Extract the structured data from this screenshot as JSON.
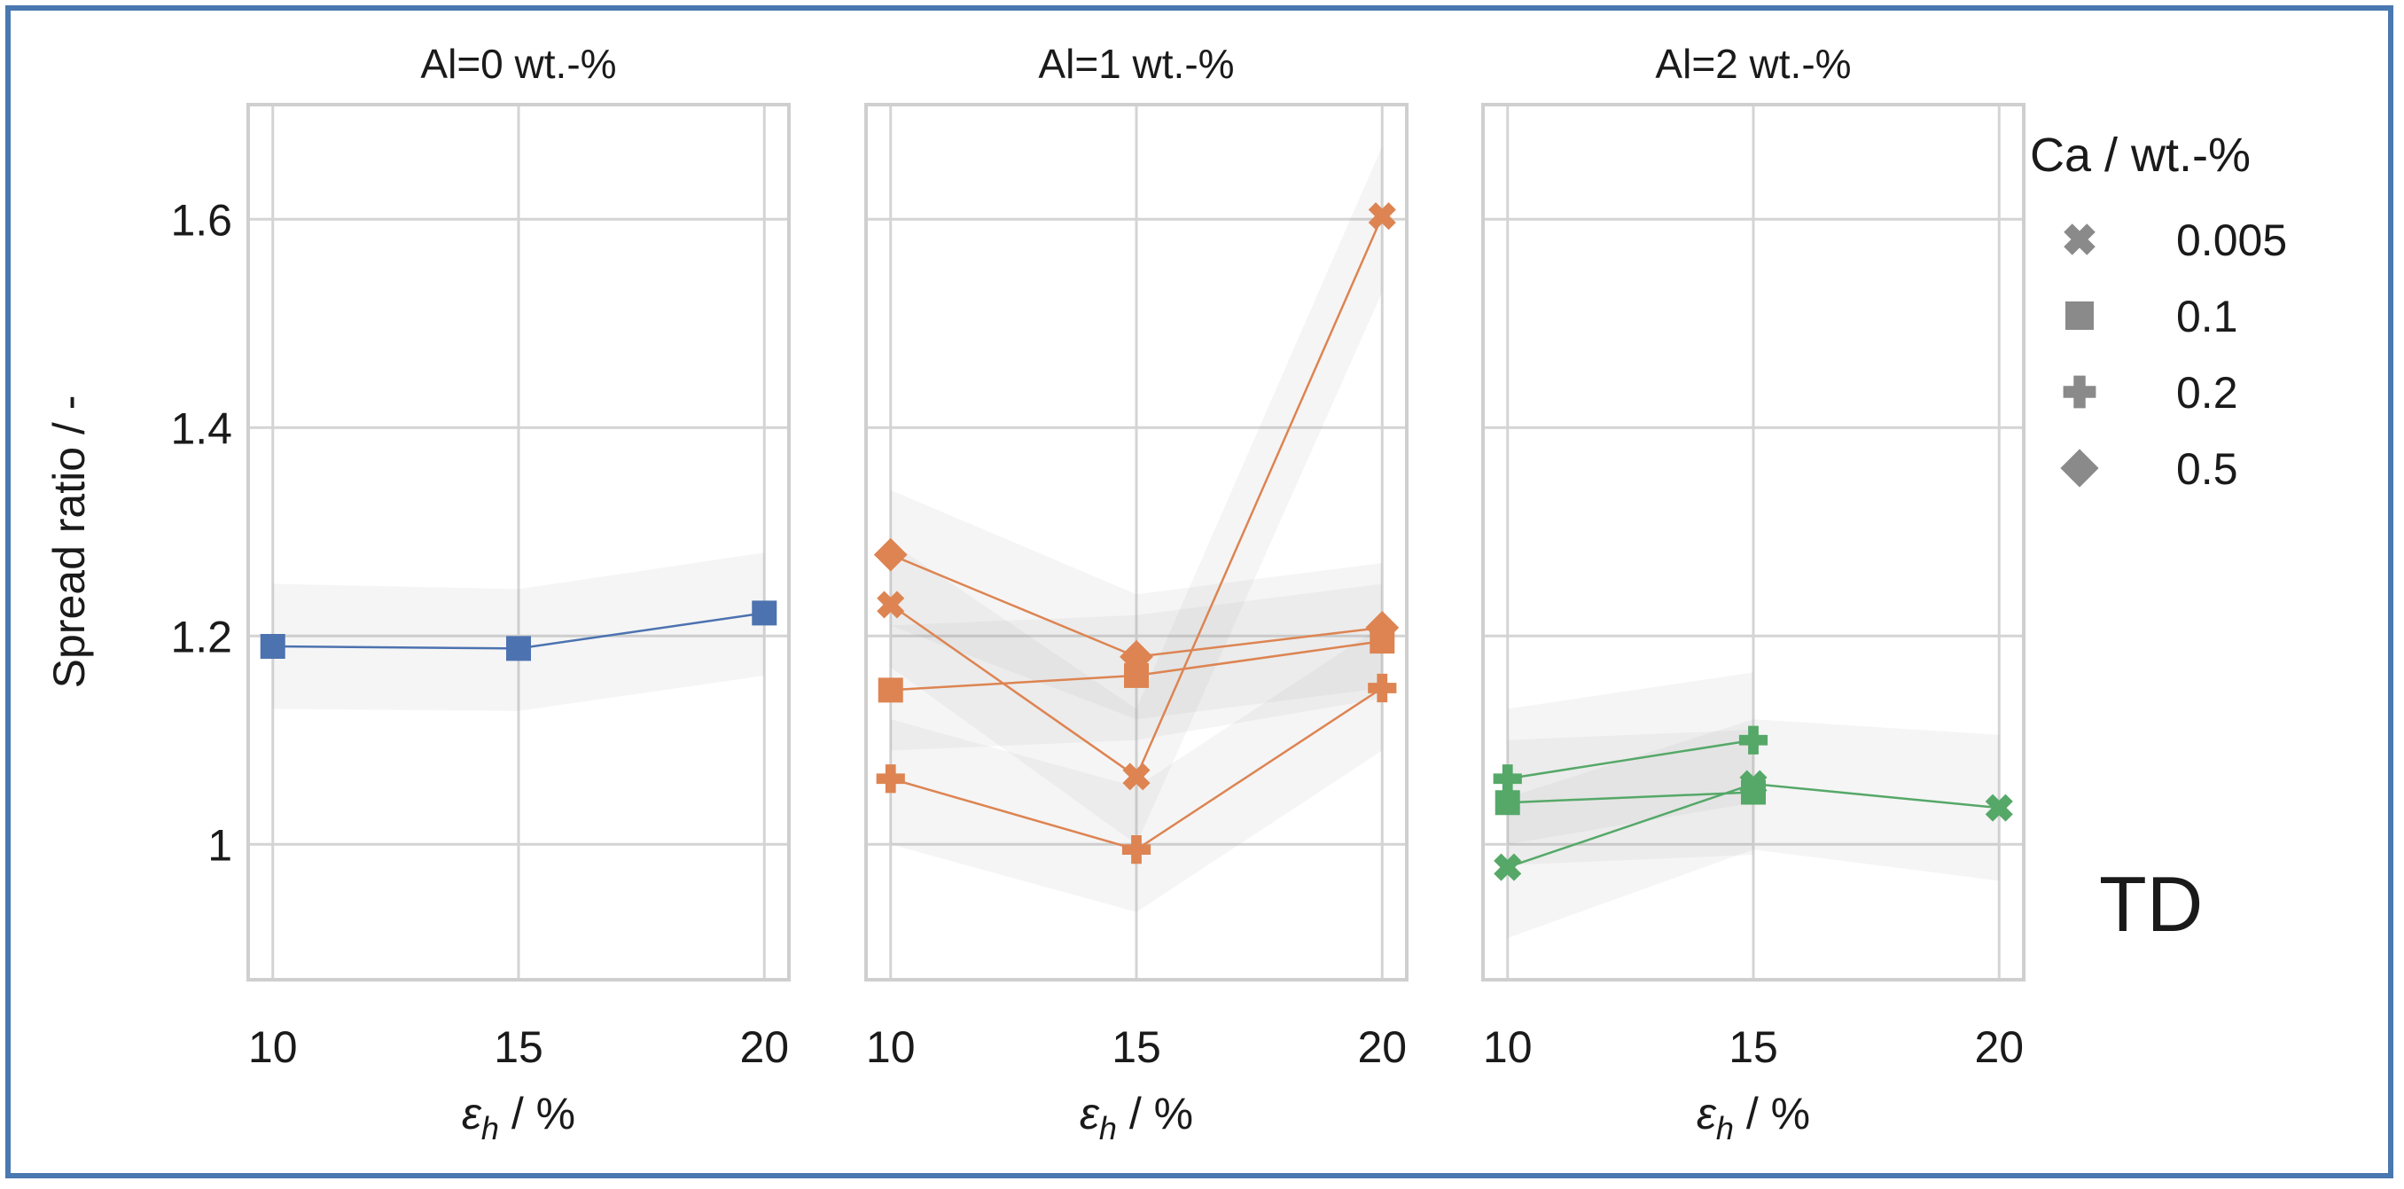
{
  "chart_data": {
    "type": "line",
    "ylabel": "Spread ratio / -",
    "xlabel": "εh / %",
    "ylim": [
      0.87,
      1.71
    ],
    "xlim": [
      9.5,
      20.5
    ],
    "x_ticks": [
      10,
      15,
      20
    ],
    "y_ticks": [
      1,
      1.2,
      1.4,
      1.6
    ],
    "y_tick_labels": [
      "1",
      "1.2",
      "1.4",
      "1.6"
    ],
    "grid": true,
    "annotation": "TD",
    "legend": {
      "title": "Ca / wt.-%",
      "placement": "right",
      "entries": [
        {
          "label": "0.005",
          "marker": "x"
        },
        {
          "label": "0.1",
          "marker": "square"
        },
        {
          "label": "0.2",
          "marker": "plus"
        },
        {
          "label": "0.5",
          "marker": "diamond"
        }
      ]
    },
    "panels": [
      {
        "title": "Al=0 wt.-%",
        "color": "#4c72b0",
        "series": [
          {
            "ca": "0.1",
            "marker": "square",
            "x": [
              10,
              15,
              20
            ],
            "y": [
              1.19,
              1.188,
              1.222
            ],
            "ci_low": [
              1.13,
              1.128,
              1.162
            ],
            "ci_high": [
              1.25,
              1.245,
              1.28
            ]
          }
        ]
      },
      {
        "title": "Al=1 wt.-%",
        "color": "#dd8452",
        "series": [
          {
            "ca": "0.005",
            "marker": "x",
            "x": [
              10,
              15,
              20
            ],
            "y": [
              1.23,
              1.065,
              1.603
            ],
            "ci_low": [
              1.17,
              1.0,
              1.53
            ],
            "ci_high": [
              1.29,
              1.13,
              1.67
            ]
          },
          {
            "ca": "0.1",
            "marker": "square",
            "x": [
              10,
              15,
              20
            ],
            "y": [
              1.148,
              1.162,
              1.195
            ],
            "ci_low": [
              1.09,
              1.1,
              1.14
            ],
            "ci_high": [
              1.21,
              1.22,
              1.25
            ]
          },
          {
            "ca": "0.2",
            "marker": "plus",
            "x": [
              10,
              15,
              20
            ],
            "y": [
              1.063,
              0.995,
              1.15
            ],
            "ci_low": [
              1.0,
              0.935,
              1.09
            ],
            "ci_high": [
              1.12,
              1.055,
              1.21
            ]
          },
          {
            "ca": "0.5",
            "marker": "diamond",
            "x": [
              10,
              15,
              20
            ],
            "y": [
              1.278,
              1.18,
              1.208
            ],
            "ci_low": [
              1.21,
              1.12,
              1.15
            ],
            "ci_high": [
              1.34,
              1.24,
              1.27
            ]
          }
        ]
      },
      {
        "title": "Al=2 wt.-%",
        "color": "#55a868",
        "series": [
          {
            "ca": "0.005",
            "marker": "x",
            "x": [
              10,
              15,
              20
            ],
            "y": [
              0.978,
              1.058,
              1.035
            ],
            "ci_low": [
              0.91,
              0.995,
              0.965
            ],
            "ci_high": [
              1.045,
              1.12,
              1.105
            ]
          },
          {
            "ca": "0.1",
            "marker": "square",
            "x": [
              10,
              15
            ],
            "y": [
              1.04,
              1.05
            ],
            "ci_low": [
              0.98,
              0.99
            ],
            "ci_high": [
              1.1,
              1.11
            ]
          },
          {
            "ca": "0.2",
            "marker": "plus",
            "x": [
              10,
              15
            ],
            "y": [
              1.063,
              1.1
            ],
            "ci_low": [
              1.0,
              1.04
            ],
            "ci_high": [
              1.13,
              1.165
            ]
          }
        ]
      }
    ]
  }
}
